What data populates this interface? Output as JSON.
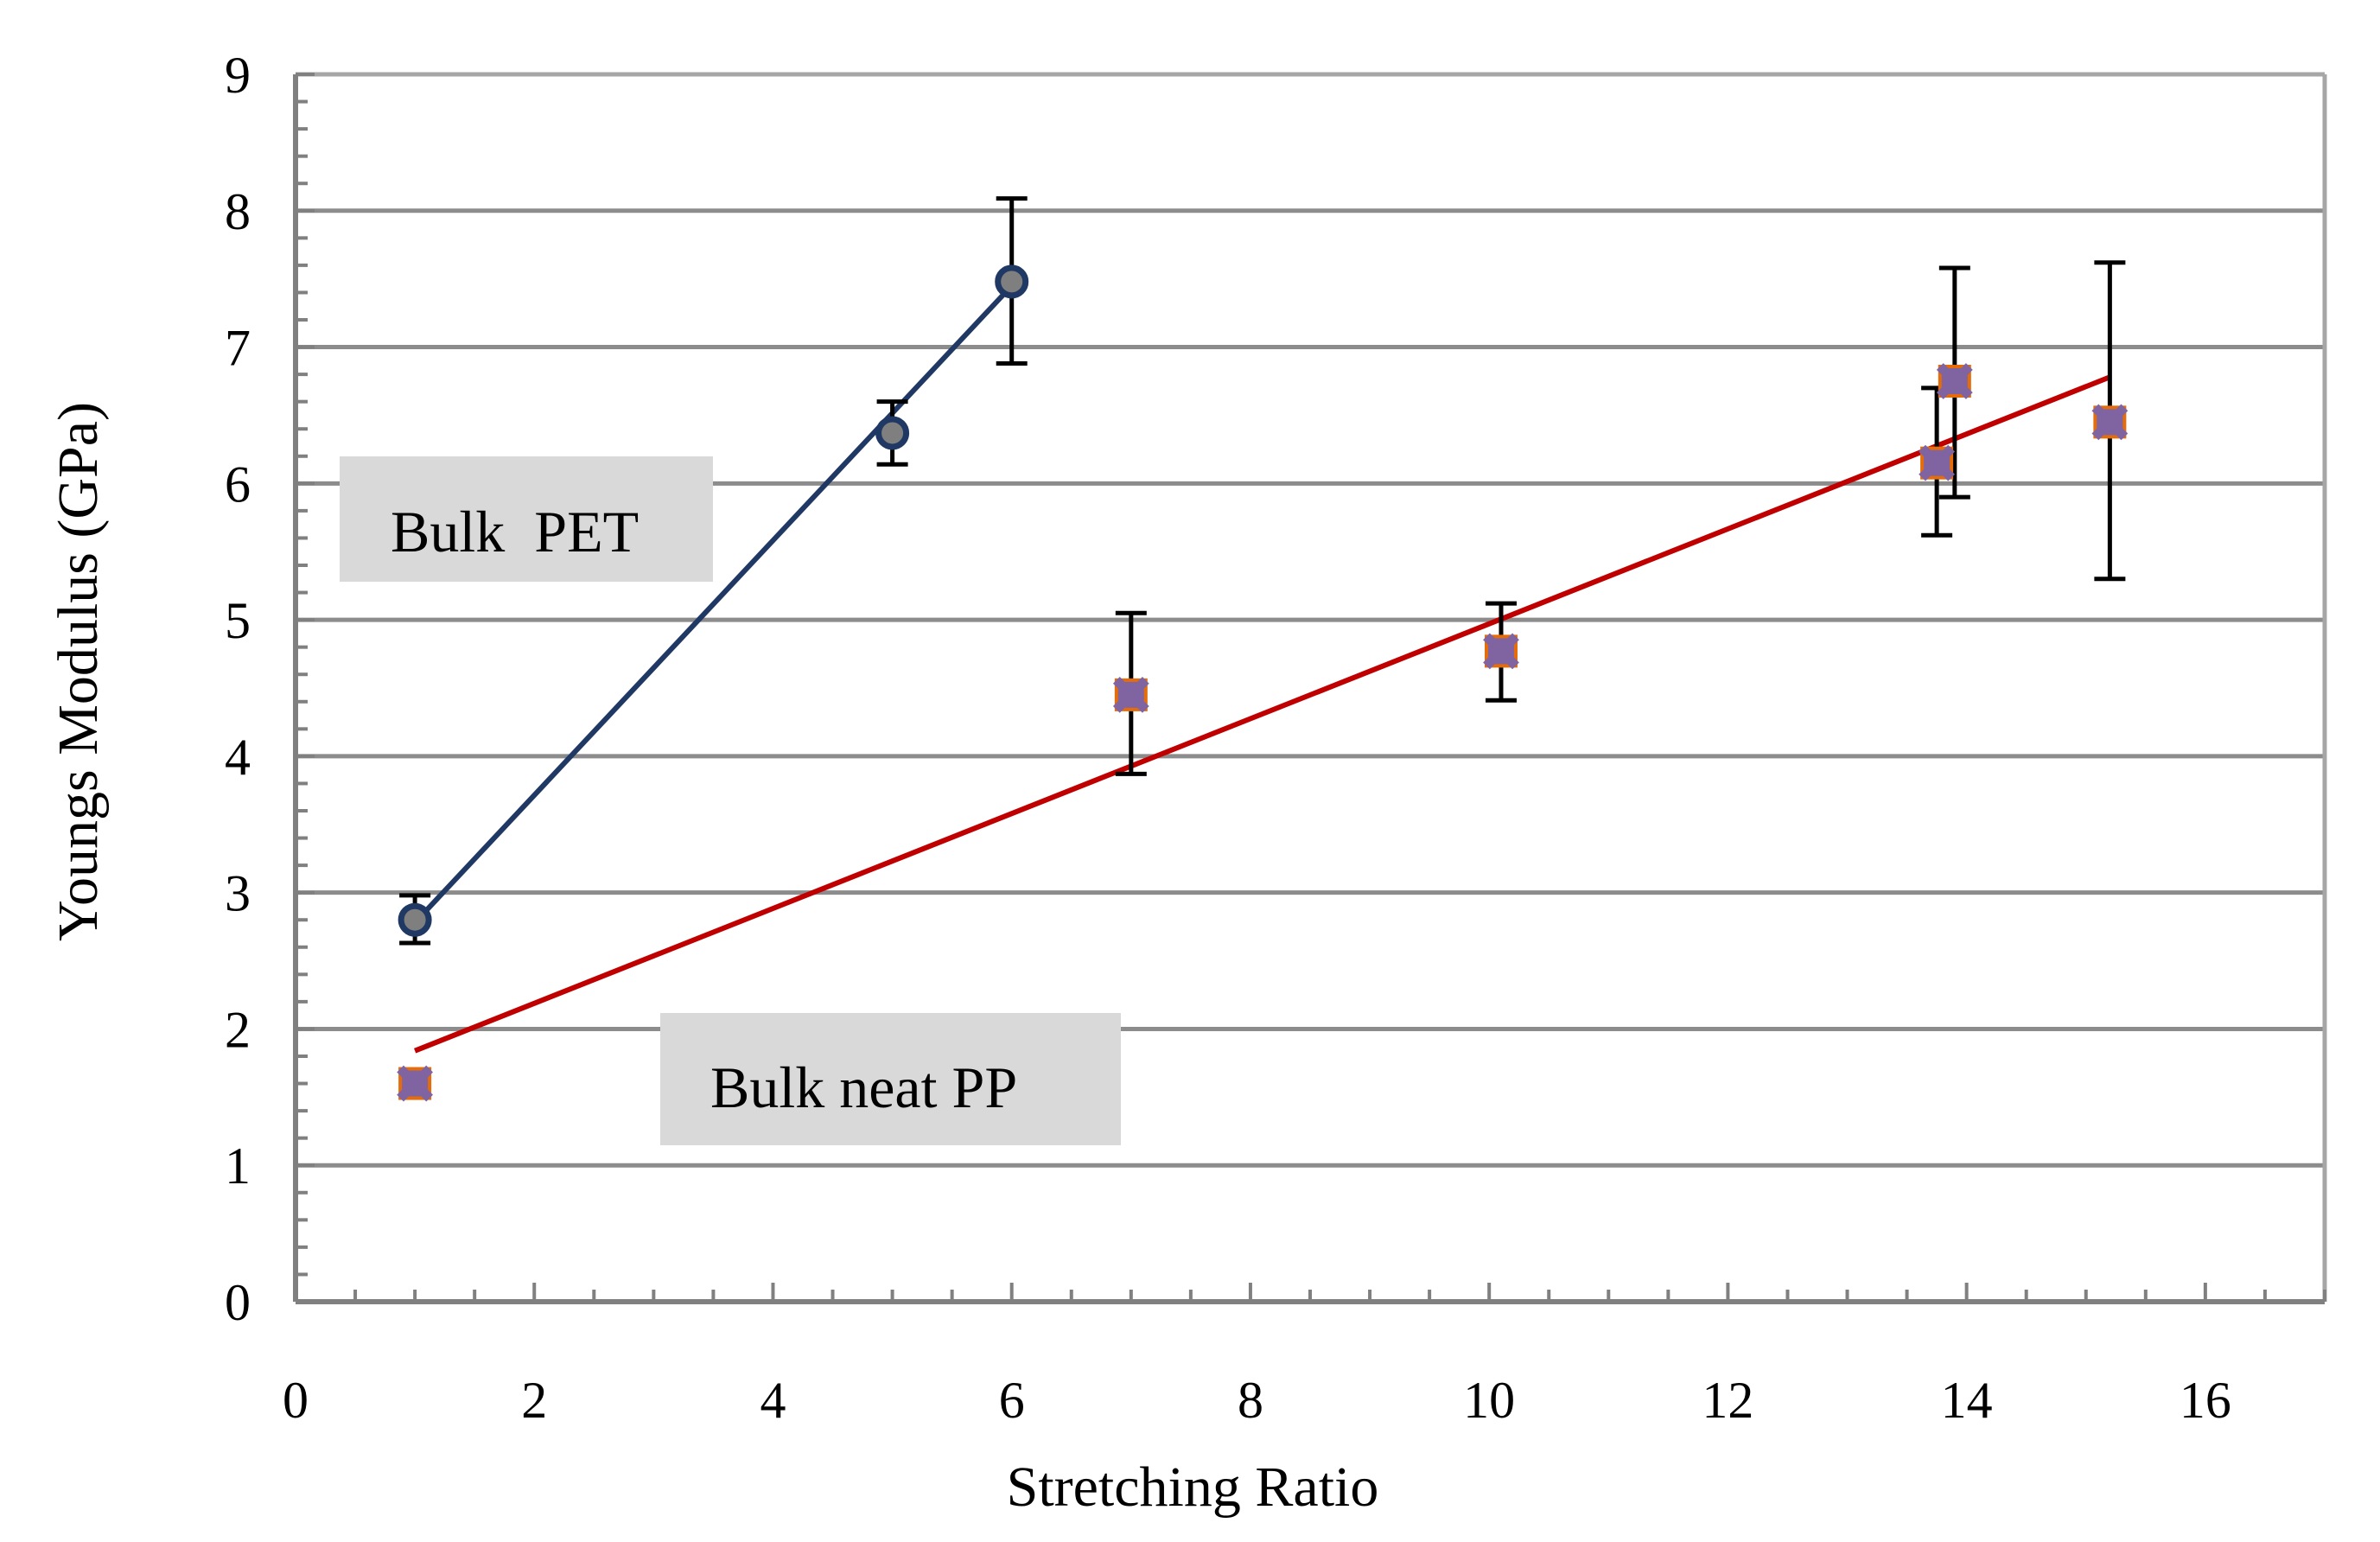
{
  "chart_data": {
    "type": "scatter",
    "xlabel": "Stretching Ratio",
    "ylabel": "Youngs Modulus (GPa)",
    "xlim": [
      0,
      17
    ],
    "ylim": [
      0,
      9
    ],
    "xticks": [
      0,
      2,
      4,
      6,
      8,
      10,
      12,
      14,
      16
    ],
    "yticks": [
      0,
      1,
      2,
      3,
      4,
      5,
      6,
      7,
      8,
      9
    ],
    "grid": "horizontal",
    "series": [
      {
        "name": "Bulk PET",
        "marker": "circle",
        "color": "#1f3864",
        "fill": "#7f7f7f",
        "points": [
          {
            "x": 1,
            "y": 2.8,
            "err_low": 2.63,
            "err_high": 2.98
          },
          {
            "x": 5,
            "y": 6.37,
            "err_low": 6.14,
            "err_high": 6.6
          },
          {
            "x": 6,
            "y": 7.48,
            "err_low": 6.88,
            "err_high": 8.09
          }
        ],
        "fit": {
          "x1": 1,
          "y1": 2.78,
          "x2": 6,
          "y2": 7.45,
          "color": "#1f3864"
        }
      },
      {
        "name": "Bulk neat PP",
        "marker": "x-square",
        "color": "#8064a2",
        "edge": "#e46c0a",
        "points": [
          {
            "x": 1,
            "y": 1.6
          },
          {
            "x": 7,
            "y": 4.45,
            "err_low": 3.87,
            "err_high": 5.05
          },
          {
            "x": 10.1,
            "y": 4.77,
            "err_low": 4.41,
            "err_high": 5.12
          },
          {
            "x": 13.75,
            "y": 6.15,
            "err_low": 5.62,
            "err_high": 6.7
          },
          {
            "x": 13.9,
            "y": 6.75,
            "err_low": 5.9,
            "err_high": 7.58
          },
          {
            "x": 15.2,
            "y": 6.45,
            "err_low": 5.3,
            "err_high": 7.62
          }
        ],
        "fit": {
          "x1": 1,
          "y1": 1.84,
          "x2": 15.2,
          "y2": 6.78,
          "color": "#c00000"
        }
      }
    ],
    "annotations": [
      {
        "text": "Bulk  PET",
        "series": 0
      },
      {
        "text": "Bulk neat PP",
        "series": 1
      }
    ]
  },
  "colors": {
    "grid": "#8c8c8c",
    "frame": "#a6a6a6",
    "axis": "#808080",
    "annotation_bg": "#d9d9d9",
    "errorbar": "#000000"
  }
}
